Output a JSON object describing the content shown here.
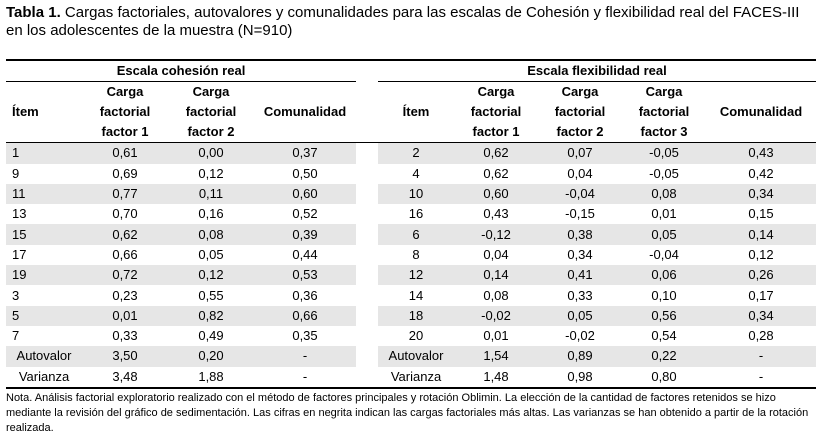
{
  "caption": {
    "label": "Tabla 1.",
    "text": " Cargas factoriales, autovalores y comunalidades para las escalas de Cohesión y flexibilidad real del FACES-III en los adolescentes de la muestra (N=910)"
  },
  "groups": {
    "left": "Escala cohesión real",
    "right": "Escala flexibilidad real"
  },
  "headers": {
    "left": [
      "Ítem",
      "Carga factorial factor 1",
      "Carga factorial factor 2",
      "Comunalidad"
    ],
    "right": [
      "Ítem",
      "Carga factorial factor 1",
      "Carga factorial factor 2",
      "Carga factorial factor 3",
      "Comunalidad"
    ]
  },
  "rows": [
    {
      "l": [
        "1",
        "0,61",
        "0,00",
        "0,37"
      ],
      "r": [
        "2",
        "0,62",
        "0,07",
        "-0,05",
        "0,43"
      ]
    },
    {
      "l": [
        "9",
        "0,69",
        "0,12",
        "0,50"
      ],
      "r": [
        "4",
        "0,62",
        "0,04",
        "-0,05",
        "0,42"
      ]
    },
    {
      "l": [
        "11",
        "0,77",
        "0,11",
        "0,60"
      ],
      "r": [
        "10",
        "0,60",
        "-0,04",
        "0,08",
        "0,34"
      ]
    },
    {
      "l": [
        "13",
        "0,70",
        "0,16",
        "0,52"
      ],
      "r": [
        "16",
        "0,43",
        "-0,15",
        "0,01",
        "0,15"
      ]
    },
    {
      "l": [
        "15",
        "0,62",
        "0,08",
        "0,39"
      ],
      "r": [
        "6",
        "-0,12",
        "0,38",
        "0,05",
        "0,14"
      ]
    },
    {
      "l": [
        "17",
        "0,66",
        "0,05",
        "0,44"
      ],
      "r": [
        "8",
        "0,04",
        "0,34",
        "-0,04",
        "0,12"
      ]
    },
    {
      "l": [
        "19",
        "0,72",
        "0,12",
        "0,53"
      ],
      "r": [
        "12",
        "0,14",
        "0,41",
        "0,06",
        "0,26"
      ]
    },
    {
      "l": [
        "3",
        "0,23",
        "0,55",
        "0,36"
      ],
      "r": [
        "14",
        "0,08",
        "0,33",
        "0,10",
        "0,17"
      ]
    },
    {
      "l": [
        "5",
        "0,01",
        "0,82",
        "0,66"
      ],
      "r": [
        "18",
        "-0,02",
        "0,05",
        "0,56",
        "0,34"
      ]
    },
    {
      "l": [
        "7",
        "0,33",
        "0,49",
        "0,35"
      ],
      "r": [
        "20",
        "0,01",
        "-0,02",
        "0,54",
        "0,28"
      ]
    },
    {
      "l": [
        "Autovalor",
        "3,50",
        "0,20",
        "-"
      ],
      "r": [
        "Autovalor",
        "1,54",
        "0,89",
        "0,22",
        "-"
      ]
    },
    {
      "l": [
        "Varianza",
        "3,48",
        "1,88",
        "-"
      ],
      "r": [
        "Varianza",
        "1,48",
        "0,98",
        "0,80",
        "-"
      ]
    }
  ],
  "note": "Nota. Análisis factorial exploratorio realizado con el método de factores principales y rotación Oblimin. La elección de la cantidad de factores retenidos se hizo mediante la revisión del gráfico de sedimentación. Las cifras en negrita indican las cargas factoriales más altas. Las varianzas se han obtenido a partir de la rotación realizada."
}
